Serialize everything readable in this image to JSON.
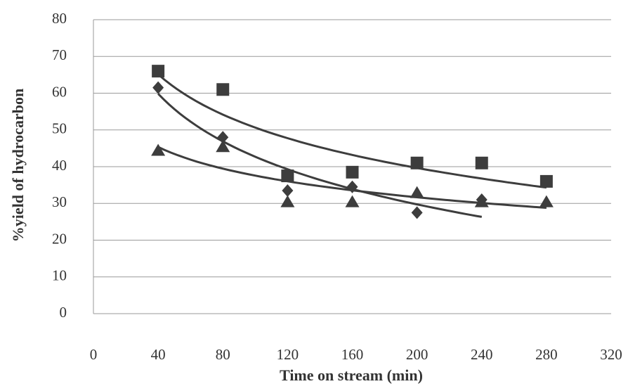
{
  "chart_data": {
    "type": "scatter",
    "x_label": "Time on stream (min)",
    "y_label": "%yield of hydrocarbon",
    "xlim": [
      0,
      320
    ],
    "xticks": [
      0,
      40,
      80,
      120,
      160,
      200,
      240,
      280,
      320
    ],
    "ylim": [
      0,
      80
    ],
    "yticks": [
      0,
      10,
      20,
      30,
      40,
      50,
      60,
      70,
      80
    ],
    "grid": true,
    "trendline": "log",
    "series": [
      {
        "marker": "square",
        "color": "#3d3d3d",
        "x": [
          40,
          80,
          120,
          160,
          200,
          240,
          280
        ],
        "values": [
          66,
          61,
          37.5,
          38.5,
          41,
          41,
          36
        ]
      },
      {
        "marker": "diamond",
        "color": "#3d3d3d",
        "x": [
          40,
          80,
          120,
          160,
          200,
          240
        ],
        "values": [
          61.5,
          48,
          33.5,
          34.5,
          27.5,
          31
        ]
      },
      {
        "marker": "triangle",
        "color": "#3d3d3d",
        "x": [
          40,
          80,
          120,
          160,
          200,
          240,
          280
        ],
        "values": [
          44.5,
          45.5,
          30.5,
          30.5,
          33,
          30.5,
          30.5
        ]
      }
    ]
  }
}
